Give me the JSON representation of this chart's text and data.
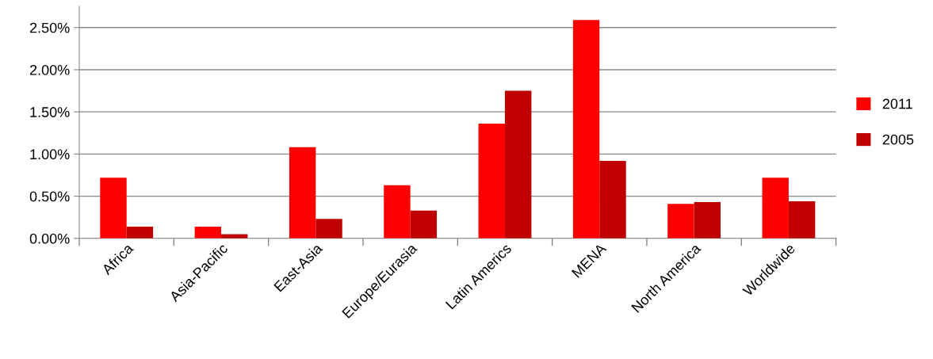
{
  "chart_data": {
    "type": "bar",
    "categories": [
      "Africa",
      "Asia-Pacific",
      "East-Asia",
      "Europe/Eurasia",
      "Latin Americs",
      "MENA",
      "North America",
      "Worldwide"
    ],
    "series": [
      {
        "name": "2011",
        "color": "#ff0000",
        "values": [
          0.72,
          0.14,
          1.08,
          0.63,
          1.36,
          2.59,
          0.41,
          0.72
        ]
      },
      {
        "name": "2005",
        "color": "#c00000",
        "values": [
          0.14,
          0.05,
          0.23,
          0.33,
          1.75,
          0.92,
          0.43,
          0.44
        ]
      }
    ],
    "ylim": [
      0,
      2.75
    ],
    "yticks": [
      {
        "value": 0,
        "label": "0.00%"
      },
      {
        "value": 0.5,
        "label": "0.50%"
      },
      {
        "value": 1,
        "label": "1.00%"
      },
      {
        "value": 1.5,
        "label": "1.50%"
      },
      {
        "value": 2,
        "label": "2.00%"
      },
      {
        "value": 2.5,
        "label": "2.50%"
      }
    ],
    "grid": "y",
    "legend": "right"
  }
}
